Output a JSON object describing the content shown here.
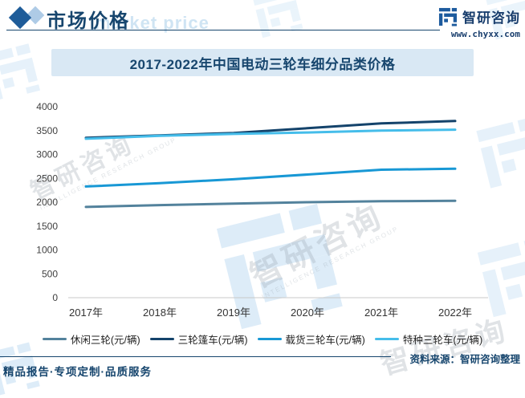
{
  "header": {
    "title": "市场价格",
    "brand_name": "智研咨询",
    "brand_url": "www.chyxx.com"
  },
  "watermarks": {
    "market_price": "market price",
    "brand": "智研咨询",
    "caption": "INTELLIGENCE RESEARCH GROUP"
  },
  "chart_data": {
    "type": "line",
    "title": "2017-2022年中国电动三轮车细分品类价格",
    "categories": [
      "2017年",
      "2018年",
      "2019年",
      "2020年",
      "2021年",
      "2022年"
    ],
    "series": [
      {
        "name": "休闲三轮(元/辆)",
        "color": "#53829c",
        "values": [
          1900,
          1940,
          1970,
          2000,
          2020,
          2030
        ]
      },
      {
        "name": "三轮篷车(元/辆)",
        "color": "#14436b",
        "values": [
          3350,
          3400,
          3450,
          3550,
          3650,
          3700
        ]
      },
      {
        "name": "载货三轮车(元/辆)",
        "color": "#1898d5",
        "values": [
          2330,
          2400,
          2480,
          2580,
          2680,
          2700
        ]
      },
      {
        "name": "特种三轮车(元/辆)",
        "color": "#45bdea",
        "values": [
          3330,
          3390,
          3430,
          3460,
          3500,
          3520
        ]
      }
    ],
    "ylim": [
      0,
      4000
    ],
    "ytick_step": 500,
    "grid": false,
    "legend_position": "bottom"
  },
  "footer": {
    "source_label": "资料来源：智研咨询整理",
    "services": "精品报告·专项定制·品质服务"
  }
}
